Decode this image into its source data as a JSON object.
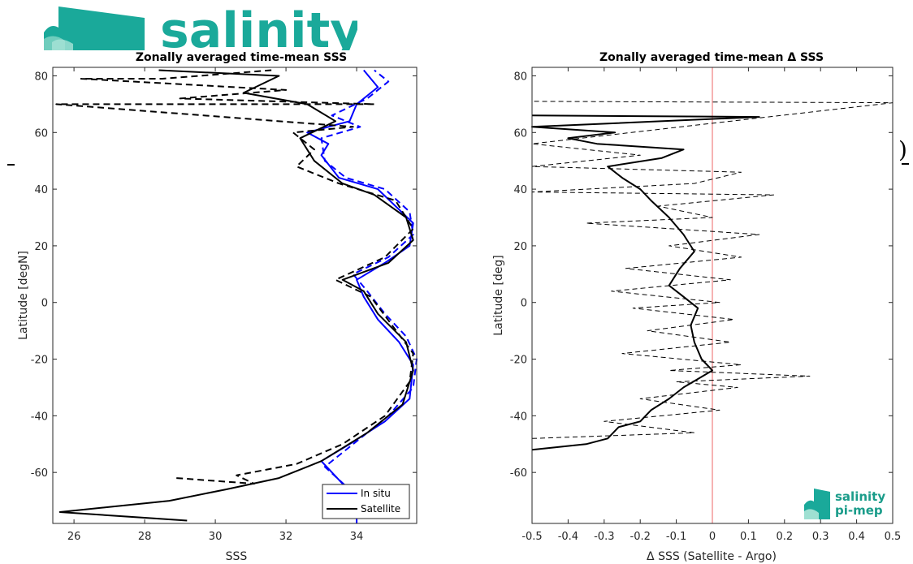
{
  "logo": {
    "text": "salinity",
    "color": "#1aa99a"
  },
  "badge": {
    "line1": "salinity",
    "line2": "pi-mep"
  },
  "chart_data": [
    {
      "type": "line",
      "title": "Zonally averaged time-mean SSS",
      "xlabel": "SSS",
      "ylabel": "Latitude [degN]",
      "xlim": [
        25.4,
        35.7
      ],
      "ylim": [
        -78,
        83
      ],
      "xticks": [
        26,
        28,
        30,
        32,
        34
      ],
      "yticks": [
        -60,
        -40,
        -20,
        0,
        20,
        40,
        60,
        80
      ],
      "grid": false,
      "legend": "bottom-right",
      "series": [
        {
          "name": "In situ",
          "color": "#0000ff",
          "style": "solid",
          "points": [
            [
              34.0,
              -78
            ],
            [
              34.0,
              -72
            ],
            [
              33.6,
              -64
            ],
            [
              33.0,
              -56
            ],
            [
              33.8,
              -50
            ],
            [
              34.8,
              -42
            ],
            [
              35.5,
              -34
            ],
            [
              35.6,
              -22
            ],
            [
              35.2,
              -14
            ],
            [
              34.6,
              -6
            ],
            [
              34.2,
              2
            ],
            [
              34.0,
              8
            ],
            [
              34.8,
              14
            ],
            [
              35.5,
              20
            ],
            [
              35.6,
              28
            ],
            [
              34.6,
              40
            ],
            [
              33.5,
              44
            ],
            [
              33.0,
              52
            ],
            [
              33.2,
              56
            ],
            [
              32.6,
              60
            ],
            [
              33.8,
              64
            ],
            [
              34.0,
              70
            ],
            [
              34.6,
              76
            ],
            [
              34.2,
              82
            ]
          ]
        },
        {
          "name": "",
          "color": "#0000ff",
          "style": "dashed",
          "points": [
            [
              34.1,
              -74
            ],
            [
              33.8,
              -66
            ],
            [
              33.1,
              -58
            ],
            [
              33.9,
              -50
            ],
            [
              34.9,
              -40
            ],
            [
              35.6,
              -30
            ],
            [
              35.7,
              -20
            ],
            [
              35.4,
              -12
            ],
            [
              34.8,
              -4
            ],
            [
              34.3,
              4
            ],
            [
              33.9,
              10
            ],
            [
              34.9,
              16
            ],
            [
              35.6,
              24
            ],
            [
              35.5,
              32
            ],
            [
              34.8,
              40
            ],
            [
              33.7,
              44
            ],
            [
              33.1,
              50
            ],
            [
              33.0,
              58
            ],
            [
              34.1,
              62
            ],
            [
              33.3,
              66
            ],
            [
              34.3,
              72
            ],
            [
              34.9,
              78
            ],
            [
              34.5,
              82
            ]
          ]
        },
        {
          "name": "Satellite",
          "color": "#000000",
          "style": "solid",
          "points": [
            [
              29.2,
              -77
            ],
            [
              25.6,
              -74
            ],
            [
              28.7,
              -70
            ],
            [
              30.3,
              -66
            ],
            [
              31.8,
              -62
            ],
            [
              33.0,
              -56
            ],
            [
              34.3,
              -46
            ],
            [
              35.3,
              -36
            ],
            [
              35.6,
              -24
            ],
            [
              35.4,
              -14
            ],
            [
              34.6,
              -4
            ],
            [
              34.2,
              4
            ],
            [
              33.6,
              8
            ],
            [
              34.9,
              14
            ],
            [
              35.6,
              22
            ],
            [
              35.4,
              30
            ],
            [
              34.5,
              38
            ],
            [
              33.6,
              42
            ],
            [
              32.8,
              50
            ],
            [
              32.4,
              58
            ],
            [
              33.4,
              64
            ],
            [
              32.6,
              70
            ],
            [
              30.8,
              74
            ],
            [
              31.8,
              80
            ],
            [
              28.4,
              82
            ]
          ]
        },
        {
          "name": "",
          "color": "#000000",
          "style": "dashed",
          "points": [
            [
              28.9,
              -62
            ],
            [
              31.1,
              -64
            ],
            [
              30.6,
              -61
            ],
            [
              32.3,
              -57
            ],
            [
              33.6,
              -50
            ],
            [
              34.8,
              -40
            ],
            [
              35.5,
              -28
            ],
            [
              35.6,
              -18
            ],
            [
              35.0,
              -8
            ],
            [
              34.4,
              2
            ],
            [
              33.4,
              8
            ],
            [
              34.8,
              16
            ],
            [
              35.6,
              26
            ],
            [
              35.1,
              36
            ],
            [
              33.5,
              42
            ],
            [
              32.3,
              48
            ],
            [
              32.8,
              54
            ],
            [
              32.2,
              60
            ],
            [
              33.9,
              62
            ],
            [
              25.5,
              70
            ],
            [
              34.5,
              70
            ],
            [
              29.0,
              72
            ],
            [
              32.0,
              75
            ],
            [
              26.2,
              79
            ],
            [
              28.5,
              79
            ],
            [
              31.6,
              82
            ]
          ]
        }
      ]
    },
    {
      "type": "line",
      "title": "Zonally averaged time-mean Δ SSS",
      "xlabel": "Δ SSS (Satellite - Argo)",
      "ylabel": "Latitude [deg]",
      "xlim": [
        -0.5,
        0.5
      ],
      "ylim": [
        -78,
        83
      ],
      "xticks": [
        -0.5,
        -0.4,
        -0.3,
        -0.2,
        -0.1,
        0,
        0.1,
        0.2,
        0.3,
        0.4,
        0.5
      ],
      "yticks": [
        -60,
        -40,
        -20,
        0,
        20,
        40,
        60,
        80
      ],
      "grid": false,
      "reference_line": {
        "x": 0,
        "color": "#f08080"
      },
      "series": [
        {
          "name": "",
          "color": "#000000",
          "style": "solid",
          "points": [
            [
              -0.5,
              -52
            ],
            [
              -0.35,
              -50
            ],
            [
              -0.29,
              -48
            ],
            [
              -0.26,
              -44
            ],
            [
              -0.2,
              -42
            ],
            [
              -0.17,
              -38
            ],
            [
              -0.12,
              -34
            ],
            [
              -0.08,
              -30
            ],
            [
              -0.04,
              -27
            ],
            [
              0.0,
              -24
            ],
            [
              -0.03,
              -20
            ],
            [
              -0.05,
              -14
            ],
            [
              -0.06,
              -8
            ],
            [
              -0.04,
              -2
            ],
            [
              -0.08,
              2
            ],
            [
              -0.12,
              6
            ],
            [
              -0.09,
              12
            ],
            [
              -0.05,
              18
            ],
            [
              -0.08,
              24
            ],
            [
              -0.12,
              30
            ],
            [
              -0.17,
              36
            ],
            [
              -0.2,
              40
            ],
            [
              -0.25,
              44
            ],
            [
              -0.29,
              48
            ],
            [
              -0.14,
              51
            ],
            [
              -0.08,
              54
            ],
            [
              -0.32,
              56
            ],
            [
              -0.4,
              58
            ],
            [
              -0.27,
              60
            ],
            [
              -0.5,
              62
            ],
            [
              0.13,
              65.5
            ],
            [
              -0.5,
              66
            ]
          ]
        },
        {
          "name": "",
          "color": "#000000",
          "style": "dashed",
          "points": [
            [
              -0.5,
              -48
            ],
            [
              -0.05,
              -46
            ],
            [
              -0.3,
              -42
            ],
            [
              0.02,
              -38
            ],
            [
              -0.2,
              -34
            ],
            [
              0.07,
              -30
            ],
            [
              -0.1,
              -28
            ],
            [
              0.27,
              -26
            ],
            [
              -0.12,
              -24
            ],
            [
              0.08,
              -22
            ],
            [
              -0.25,
              -18
            ],
            [
              0.05,
              -14
            ],
            [
              -0.18,
              -10
            ],
            [
              0.06,
              -6
            ],
            [
              -0.22,
              -2
            ],
            [
              0.02,
              0
            ],
            [
              -0.28,
              4
            ],
            [
              0.05,
              8
            ],
            [
              -0.24,
              12
            ],
            [
              0.08,
              16
            ],
            [
              -0.12,
              20
            ],
            [
              0.13,
              24
            ],
            [
              -0.35,
              28
            ],
            [
              0.0,
              30
            ],
            [
              -0.15,
              34
            ],
            [
              0.17,
              38
            ],
            [
              -0.5,
              39
            ],
            [
              -0.05,
              42
            ],
            [
              0.08,
              46
            ],
            [
              -0.5,
              48
            ],
            [
              -0.2,
              52
            ],
            [
              -0.5,
              56
            ],
            [
              0.5,
              70.5
            ],
            [
              -0.5,
              71
            ]
          ]
        }
      ]
    }
  ]
}
